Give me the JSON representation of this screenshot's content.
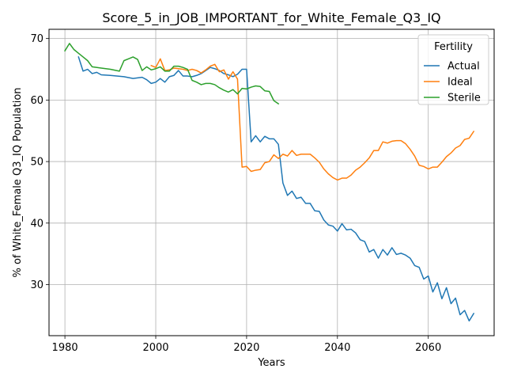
{
  "chart_data": {
    "type": "line",
    "title": "Score_5_in_JOB_IMPORTANT_for_White_Female_Q3_IQ",
    "xlabel": "Years",
    "ylabel": "% of White_Female Q3_IQ Population",
    "xlim": [
      1976.5,
      2074.5
    ],
    "ylim": [
      21.7,
      71.5
    ],
    "xticks": [
      1980,
      2000,
      2020,
      2040,
      2060
    ],
    "yticks": [
      30,
      40,
      50,
      60,
      70
    ],
    "grid": true,
    "legend": {
      "title": "Fertility",
      "position": "top-right"
    },
    "series": [
      {
        "name": "Actual",
        "color": "#1f77b4",
        "x": [
          1983,
          1984,
          1985,
          1986,
          1987,
          1988,
          1990,
          1993,
          1995,
          1997,
          1998,
          1999,
          2000,
          2001,
          2002,
          2003,
          2004,
          2005,
          2006,
          2007,
          2008,
          2009,
          2010,
          2011,
          2012,
          2013,
          2014,
          2015,
          2016,
          2017,
          2018,
          2019,
          2020,
          2021,
          2022,
          2023,
          2024,
          2025,
          2026,
          2027,
          2028,
          2029,
          2030,
          2031,
          2032,
          2033,
          2034,
          2035,
          2036,
          2037,
          2038,
          2039,
          2040,
          2041,
          2042,
          2043,
          2044,
          2045,
          2046,
          2047,
          2048,
          2049,
          2050,
          2051,
          2052,
          2053,
          2054,
          2055,
          2056,
          2057,
          2058,
          2059,
          2060,
          2061,
          2062,
          2063,
          2064,
          2065,
          2066,
          2067,
          2068,
          2069,
          2070
        ],
        "values": [
          67.0,
          64.7,
          65.0,
          64.3,
          64.5,
          64.1,
          64.0,
          63.8,
          63.5,
          63.7,
          63.3,
          62.7,
          62.9,
          63.5,
          62.9,
          63.8,
          64.0,
          64.8,
          63.9,
          63.9,
          63.8,
          64.0,
          64.3,
          64.8,
          65.3,
          65.1,
          64.8,
          64.3,
          64.1,
          63.8,
          64.2,
          65.0,
          65.0,
          53.2,
          54.2,
          53.2,
          54.1,
          53.7,
          53.7,
          52.8,
          46.5,
          44.5,
          45.2,
          44.0,
          44.2,
          43.2,
          43.2,
          42.0,
          41.9,
          40.5,
          39.7,
          39.5,
          38.7,
          39.9,
          38.9,
          39.0,
          38.4,
          37.3,
          37.0,
          35.3,
          35.7,
          34.3,
          35.7,
          34.8,
          36.0,
          34.9,
          35.1,
          34.8,
          34.3,
          33.1,
          32.8,
          30.9,
          31.4,
          28.8,
          30.3,
          27.7,
          29.5,
          26.9,
          27.8,
          25.1,
          25.8,
          24.1,
          25.3
        ]
      },
      {
        "name": "Ideal",
        "color": "#ff7f0e",
        "x": [
          1999,
          2000,
          2001,
          2002,
          2003,
          2004,
          2005,
          2006,
          2007,
          2008,
          2009,
          2010,
          2011,
          2012,
          2013,
          2014,
          2015,
          2016,
          2017,
          2018,
          2019,
          2020,
          2021,
          2022,
          2023,
          2024,
          2025,
          2026,
          2027,
          2028,
          2029,
          2030,
          2031,
          2032,
          2033,
          2034,
          2035,
          2036,
          2037,
          2038,
          2039,
          2040,
          2041,
          2042,
          2043,
          2044,
          2045,
          2046,
          2047,
          2048,
          2049,
          2050,
          2051,
          2052,
          2053,
          2054,
          2055,
          2056,
          2057,
          2058,
          2059,
          2060,
          2061,
          2062,
          2063,
          2064,
          2065,
          2066,
          2067,
          2068,
          2069,
          2070
        ],
        "values": [
          65.6,
          65.3,
          66.7,
          64.8,
          64.9,
          65.2,
          65.1,
          65.0,
          64.8,
          65.0,
          64.8,
          64.4,
          64.9,
          65.5,
          65.8,
          64.6,
          64.9,
          63.4,
          64.6,
          63.4,
          49.1,
          49.2,
          48.4,
          48.6,
          48.7,
          49.8,
          50.0,
          51.1,
          50.5,
          51.2,
          50.9,
          51.8,
          51.0,
          51.2,
          51.2,
          51.2,
          50.6,
          49.9,
          48.8,
          48.0,
          47.4,
          47.0,
          47.3,
          47.3,
          47.8,
          48.6,
          49.1,
          49.8,
          50.6,
          51.8,
          51.8,
          53.2,
          53.0,
          53.3,
          53.4,
          53.4,
          52.9,
          52.0,
          50.9,
          49.4,
          49.2,
          48.8,
          49.1,
          49.1,
          49.9,
          50.8,
          51.4,
          52.2,
          52.6,
          53.6,
          53.8,
          54.9
        ]
      },
      {
        "name": "Sterile",
        "color": "#2ca02c",
        "x": [
          1980,
          1981,
          1982,
          1983,
          1984,
          1985,
          1986,
          1988,
          1990,
          1992,
          1993,
          1994,
          1995,
          1996,
          1997,
          1998,
          1999,
          2000,
          2001,
          2002,
          2003,
          2004,
          2005,
          2006,
          2007,
          2008,
          2009,
          2010,
          2011,
          2012,
          2013,
          2014,
          2015,
          2016,
          2017,
          2018,
          2019,
          2020,
          2021,
          2022,
          2023,
          2024,
          2025,
          2026,
          2027
        ],
        "values": [
          68.0,
          69.2,
          68.2,
          67.6,
          67.0,
          66.4,
          65.4,
          65.2,
          65.0,
          64.7,
          66.4,
          66.7,
          67.0,
          66.6,
          64.8,
          65.4,
          64.9,
          65.1,
          65.4,
          64.7,
          64.7,
          65.5,
          65.5,
          65.3,
          65.0,
          63.2,
          62.9,
          62.5,
          62.7,
          62.7,
          62.5,
          62.0,
          61.6,
          61.3,
          61.7,
          61.0,
          61.9,
          61.8,
          62.1,
          62.3,
          62.2,
          61.5,
          61.4,
          59.9,
          59.4
        ]
      }
    ]
  }
}
